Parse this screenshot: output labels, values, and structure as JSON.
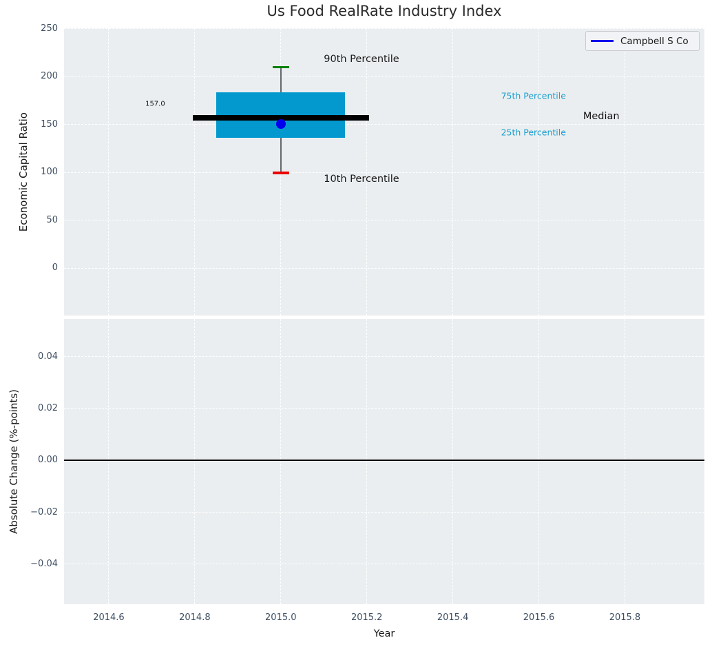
{
  "title": "Us Food RealRate Industry Index",
  "legend": {
    "label": "Campbell S Co",
    "line_color": "#0000EE"
  },
  "colors": {
    "figure_bg": "#FFFFFF",
    "plot_bg": "#EBEEF0",
    "grid": "#FFFFFF",
    "tick_label": "#3D4E61",
    "axis_label": "#1A1A1A",
    "title": "#2A2A2A",
    "box_fill": "#0399CE",
    "median_line": "#000000",
    "whisker": "#64686B",
    "cap_top": "#008000",
    "cap_bottom": "#EB0000",
    "company_point": "#0000EE",
    "annotation_cyan": "#1A9FCE",
    "zero_line": "#000000",
    "legend_bg": "#F2F3F6",
    "legend_border": "#C9CBD0"
  },
  "chart_data": [
    {
      "type": "boxplot",
      "title": "Us Food RealRate Industry Index",
      "ylabel": "Economic Capital Ratio",
      "xlim": [
        2014.496,
        2015.985
      ],
      "ylim": [
        -49.4,
        250.5
      ],
      "yticks": [
        0,
        50,
        100,
        150,
        200,
        250
      ],
      "ytick_labels": [
        "0",
        "50",
        "100",
        "150",
        "200",
        "250"
      ],
      "grid": true,
      "legend_position": "upper right",
      "box": {
        "x": 2015.0,
        "p10": 99.5,
        "p25": 136.0,
        "median": 157.0,
        "p75": 183.5,
        "p90": 210.0,
        "box_half_width": 0.15,
        "median_half_width": 0.205,
        "cap_half_width": 0.019,
        "median_label": "157.0"
      },
      "series": [
        {
          "name": "Campbell S Co",
          "x": [
            2015.0
          ],
          "y": [
            150.5
          ],
          "color": "#0000EE"
        }
      ],
      "annotations": [
        {
          "text": "90th Percentile",
          "x": 2015.1,
          "y": 218.0,
          "color": "#1A1A1A",
          "size": 14.5,
          "halign": "left"
        },
        {
          "text": "10th Percentile",
          "x": 2015.1,
          "y": 93.0,
          "color": "#1A1A1A",
          "size": 14.5,
          "halign": "left"
        },
        {
          "text": "75th Percentile",
          "x": 2015.512,
          "y": 180.0,
          "color": "#1A9FCE",
          "size": 12.5,
          "halign": "left"
        },
        {
          "text": "25th Percentile",
          "x": 2015.512,
          "y": 142.0,
          "color": "#1A9FCE",
          "size": 12.5,
          "halign": "left"
        },
        {
          "text": "Median",
          "x": 2015.703,
          "y": 158.5,
          "color": "#111111",
          "size": 14.5,
          "halign": "left"
        },
        {
          "text": "157.0",
          "x": 2014.708,
          "y": 171.6,
          "color": "#111111",
          "size": 10,
          "halign": "center"
        }
      ]
    },
    {
      "type": "line",
      "ylabel": "Absolute Change (%-points)",
      "xlabel": "Year",
      "xlim": [
        2014.496,
        2015.985
      ],
      "ylim": [
        -0.0555,
        0.0546
      ],
      "yticks": [
        -0.04,
        -0.02,
        0.0,
        0.02,
        0.04
      ],
      "ytick_labels": [
        "−0.04",
        "−0.02",
        "0.00",
        "0.02",
        "0.04"
      ],
      "xticks": [
        2014.6,
        2014.8,
        2015.0,
        2015.2,
        2015.4,
        2015.6,
        2015.8
      ],
      "xtick_labels": [
        "2014.6",
        "2014.8",
        "2015.0",
        "2015.2",
        "2015.4",
        "2015.6",
        "2015.8"
      ],
      "grid": true,
      "zero_line": true,
      "series": []
    }
  ]
}
